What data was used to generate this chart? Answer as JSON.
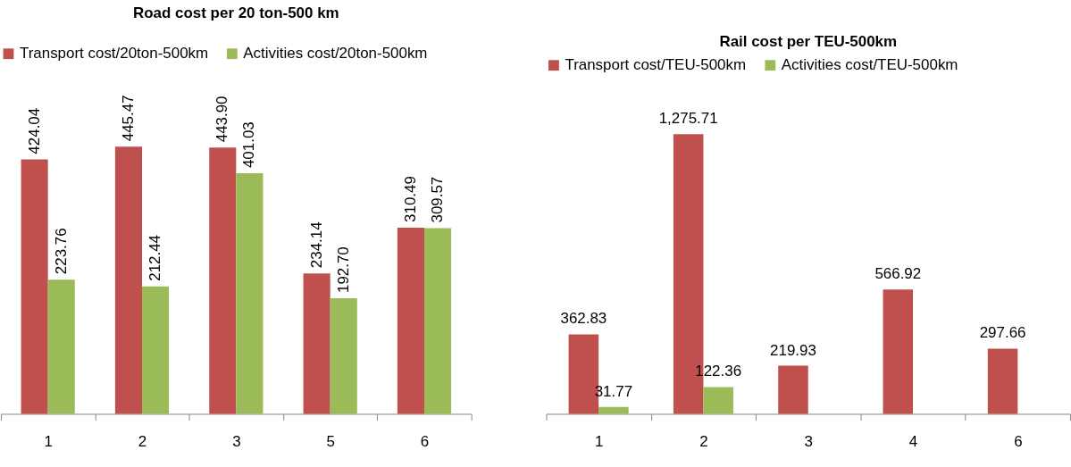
{
  "chart_data": [
    {
      "type": "bar",
      "title": "Road cost per 20 ton-500 km",
      "categories": [
        "1",
        "2",
        "3",
        "5",
        "6"
      ],
      "legend": "top",
      "tick_labels": "x",
      "series": [
        {
          "name": "Transport cost/20ton-500km",
          "color": "#c0504d",
          "values": [
            424.04,
            445.47,
            443.9,
            234.14,
            310.49
          ],
          "value_labels": [
            "424.04",
            "445.47",
            "443.90",
            "234.14",
            "310.49"
          ]
        },
        {
          "name": "Activities cost/20ton-500km",
          "color": "#9bbb59",
          "values": [
            223.76,
            212.44,
            401.03,
            192.7,
            309.57
          ],
          "value_labels": [
            "223.76",
            "212.44",
            "401.03",
            "192.70",
            "309.57"
          ]
        }
      ]
    },
    {
      "type": "bar",
      "title": "Rail cost per TEU-500km",
      "categories": [
        "1",
        "2",
        "3",
        "4",
        "6"
      ],
      "legend": "top",
      "tick_labels": "x",
      "series": [
        {
          "name": "Transport cost/TEU-500km",
          "color": "#c0504d",
          "values": [
            362.83,
            1275.71,
            219.93,
            566.92,
            297.66
          ],
          "value_labels": [
            "362.83",
            "1,275.71",
            "219.93",
            "566.92",
            "297.66"
          ]
        },
        {
          "name": "Activities cost/TEU-500km",
          "color": "#9bbb59",
          "values": [
            31.77,
            122.36,
            null,
            null,
            null
          ],
          "value_labels": [
            "31.77",
            "122.36",
            null,
            null,
            null
          ]
        }
      ]
    }
  ]
}
